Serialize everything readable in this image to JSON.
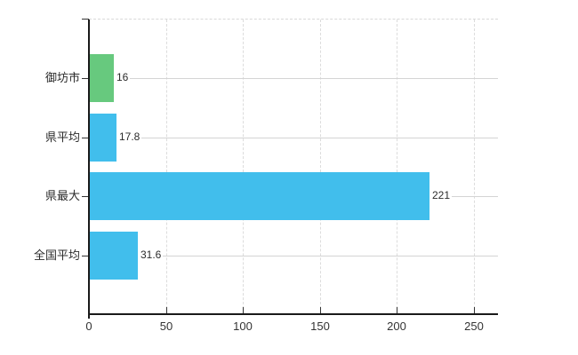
{
  "chart_data": {
    "type": "bar",
    "orientation": "horizontal",
    "title": "",
    "xlabel": "",
    "ylabel": "",
    "categories": [
      "御坊市",
      "県平均",
      "県最大",
      "全国平均"
    ],
    "values": [
      16,
      17.8,
      221,
      31.6
    ],
    "value_labels": [
      "16",
      "17.8",
      "221",
      "31.6"
    ],
    "bar_colors": [
      "#67c97e",
      "#41beec",
      "#41beec",
      "#41beec"
    ],
    "x_ticks": [
      0,
      50,
      100,
      150,
      200,
      250
    ],
    "x_tick_labels": [
      "0",
      "50",
      "100",
      "150",
      "200",
      "250"
    ],
    "xlim": [
      0,
      266
    ],
    "grid": true,
    "legend": false,
    "colors": {
      "highlight_bar": "#67c97e",
      "default_bar": "#41beec",
      "axis": "#1a1a1a",
      "tick": "#333333",
      "grid_horizontal": "#d4d4d4",
      "grid_vertical": "#dcdcdc",
      "plot_border": "#d9d9d9",
      "label_text": "#2b2b2b",
      "background": "#ffffff"
    }
  }
}
